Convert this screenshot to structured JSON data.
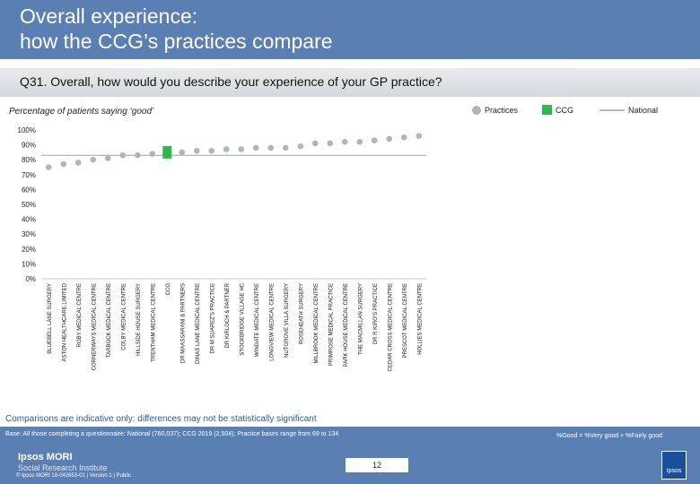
{
  "header": {
    "title_line1": "Overall experience:",
    "title_line2": "how the CCG’s practices compare"
  },
  "question": "Q31. Overall, how would you describe your experience of your GP practice?",
  "legend": {
    "practices": "Practices",
    "ccg": "CCG",
    "national": "National"
  },
  "colors": {
    "practices": "#aeb5bd",
    "ccg": "#2eb84b",
    "national": "#9aa2aa",
    "title_band": "#5a7fb3",
    "note": "#1f5fa8"
  },
  "note": "Comparisons are indicative only: differences may not be statistically significant",
  "footer": {
    "base": "Base: All those completing a questionnaire: National (760,037); CCG 2019 (2,504); Practice bases range from 69 to 134",
    "good_note": "%Good = %Very good + %Fairly good",
    "logo_line1": "Ipsos MORI",
    "logo_line2": "Social Research Institute",
    "page_number": "12",
    "copyright": "© Ipsos MORI      18-042653-01 | Version 1 | Public",
    "badge": "Ipsos"
  },
  "chart_data": {
    "type": "scatter",
    "title": "Percentage of patients saying ‘good’",
    "ylim": [
      0,
      100
    ],
    "yticks": [
      "0%",
      "10%",
      "20%",
      "30%",
      "40%",
      "50%",
      "60%",
      "70%",
      "80%",
      "90%",
      "100%"
    ],
    "legend_position": "top-right",
    "categories": [
      "BLUEBELL LANE SURGERY",
      "ASTON HEALTHCARE LIMITED",
      "ROBY MEDICAL CENTRE",
      "CORNERWAYS MEDICAL CENTRE",
      "TARBOCK MEDICAL CENTRE",
      "COLBY MEDICAL CENTRE",
      "HILLSIDE HOUSE SURGERY",
      "TRENTHAM MEDICAL CENTRE",
      "CCG",
      "DR MAASSARANI & PARTNERS",
      "DINAS LANE MEDICAL CENTRE",
      "DR M SUAREZ'S PRACTICE",
      "DR KIRLOCH & PARTNER",
      "STOCKBRIDGE VILLAGE HC",
      "WINGATE MEDICAL CENTRE",
      "LONGVIEW MEDICAL CENTRE",
      "NUTGROVE VILLA SURGERY",
      "ROSEHEATH SURGERY",
      "MILLBROOK MEDICAL CENTRE",
      "PRIMROSE MEDICAL PRACTICE",
      "PARK HOUSE MEDICAL CENTRE",
      "THE MACMILLAN SURGERY",
      "DR R KIRO'S PRACTICE",
      "CEDAR CROSS MEDICAL CENTRE",
      "PRESCOT MEDICAL CENTRE",
      "HOLLIES MEDICAL CENTRE"
    ],
    "series": [
      {
        "name": "Practices",
        "values": [
          75,
          77,
          78,
          80,
          81,
          83,
          83,
          84,
          null,
          85,
          86,
          86,
          87,
          87,
          88,
          88,
          88,
          89,
          91,
          91,
          92,
          92,
          93,
          94,
          95,
          96
        ]
      },
      {
        "name": "CCG",
        "values": [
          null,
          null,
          null,
          null,
          null,
          null,
          null,
          null,
          85,
          null,
          null,
          null,
          null,
          null,
          null,
          null,
          null,
          null,
          null,
          null,
          null,
          null,
          null,
          null,
          null,
          null
        ]
      },
      {
        "name": "National",
        "value": 83
      }
    ]
  }
}
